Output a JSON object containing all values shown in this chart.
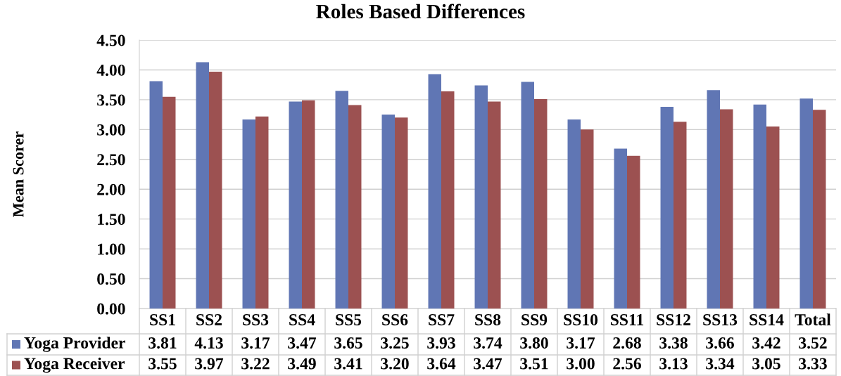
{
  "chart_data": {
    "type": "bar",
    "title": "Roles Based Differences",
    "ylabel": "Mean Scorer",
    "categories": [
      "SS1",
      "SS2",
      "SS3",
      "SS4",
      "SS5",
      "SS6",
      "SS7",
      "SS8",
      "SS9",
      "SS10",
      "SS11",
      "SS12",
      "SS13",
      "SS14",
      "Total"
    ],
    "series": [
      {
        "name": "Yoga Provider",
        "color": "#6076b4",
        "values": [
          3.81,
          4.13,
          3.17,
          3.47,
          3.65,
          3.25,
          3.93,
          3.74,
          3.8,
          3.17,
          2.68,
          3.38,
          3.66,
          3.42,
          3.52
        ],
        "value_labels": [
          "3.81",
          "4.13",
          "3.17",
          "3.47",
          "3.65",
          "3.25",
          "3.93",
          "3.74",
          "3.80",
          "3.17",
          "2.68",
          "3.38",
          "3.66",
          "3.42",
          "3.52"
        ]
      },
      {
        "name": "Yoga Receiver",
        "color": "#9c5151",
        "values": [
          3.55,
          3.97,
          3.22,
          3.49,
          3.41,
          3.2,
          3.64,
          3.47,
          3.51,
          3.0,
          2.56,
          3.13,
          3.34,
          3.05,
          3.33
        ],
        "value_labels": [
          "3.55",
          "3.97",
          "3.22",
          "3.49",
          "3.41",
          "3.20",
          "3.64",
          "3.47",
          "3.51",
          "3.00",
          "2.56",
          "3.13",
          "3.34",
          "3.05",
          "3.33"
        ]
      }
    ],
    "ylim": [
      0,
      4.5
    ],
    "yticks": [
      {
        "value": 0,
        "label": "0.00"
      },
      {
        "value": 0.5,
        "label": "0.50"
      },
      {
        "value": 1,
        "label": "1.00"
      },
      {
        "value": 1.5,
        "label": "1.50"
      },
      {
        "value": 2,
        "label": "2.00"
      },
      {
        "value": 2.5,
        "label": "2.50"
      },
      {
        "value": 3,
        "label": "3.00"
      },
      {
        "value": 3.5,
        "label": "3.50"
      },
      {
        "value": 4,
        "label": "4.00"
      },
      {
        "value": 4.5,
        "label": "4.50"
      }
    ],
    "grid": "y",
    "legend": "bottom"
  }
}
